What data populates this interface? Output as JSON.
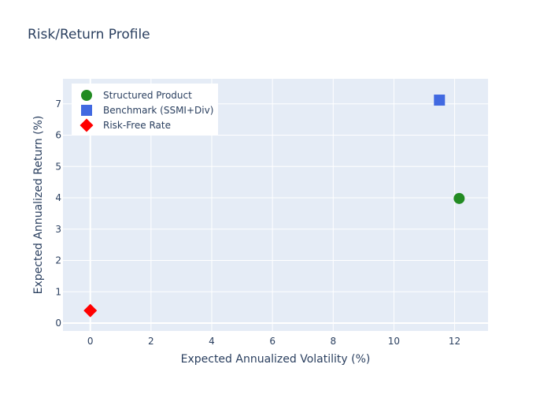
{
  "chart_data": {
    "type": "scatter",
    "title": "Risk/Return Profile",
    "xlabel": "Expected Annualized Volatility (%)",
    "ylabel": "Expected Annualized Return (%)",
    "xlim": [
      -0.9,
      13.1
    ],
    "ylim": [
      -0.25,
      7.8
    ],
    "xticks": [
      0,
      2,
      4,
      6,
      8,
      10,
      12
    ],
    "yticks": [
      0,
      1,
      2,
      3,
      4,
      5,
      6,
      7
    ],
    "grid": true,
    "legend_position": "top-left",
    "series": [
      {
        "name": "Structured Product",
        "marker": "circle",
        "color": "#228B22",
        "points": [
          {
            "x": 12.15,
            "y": 3.98
          }
        ]
      },
      {
        "name": "Benchmark (SSMI+Div)",
        "marker": "square",
        "color": "#4169E1",
        "points": [
          {
            "x": 11.5,
            "y": 7.12
          }
        ]
      },
      {
        "name": "Risk-Free Rate",
        "marker": "diamond",
        "color": "#FF0000",
        "points": [
          {
            "x": 0.0,
            "y": 0.4
          }
        ]
      }
    ]
  }
}
